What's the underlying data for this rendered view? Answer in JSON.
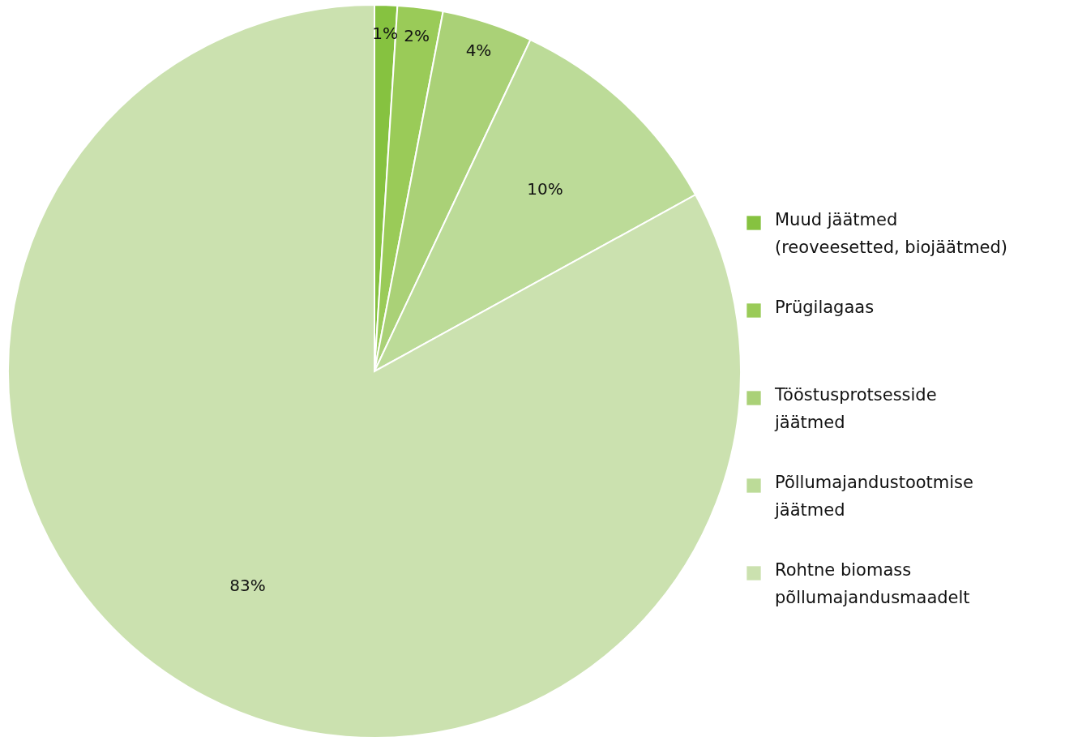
{
  "chart_data": {
    "type": "pie",
    "categories": [
      "Muud jäätmed (reoveesetted, biojäätmed)",
      "Prügilagaas",
      "Tööstusprotsesside jäätmed",
      "Põllumajandustootmise jäätmed",
      "Rohtne biomass põllumajandusmaadelt"
    ],
    "values": [
      1,
      2,
      4,
      10,
      83
    ],
    "colors": [
      "#86c240",
      "#9acb58",
      "#aad177",
      "#bcdb98",
      "#cbe1af"
    ],
    "value_labels": [
      "1%",
      "2%",
      "4%",
      "10%",
      "83%"
    ],
    "legend": "right"
  }
}
